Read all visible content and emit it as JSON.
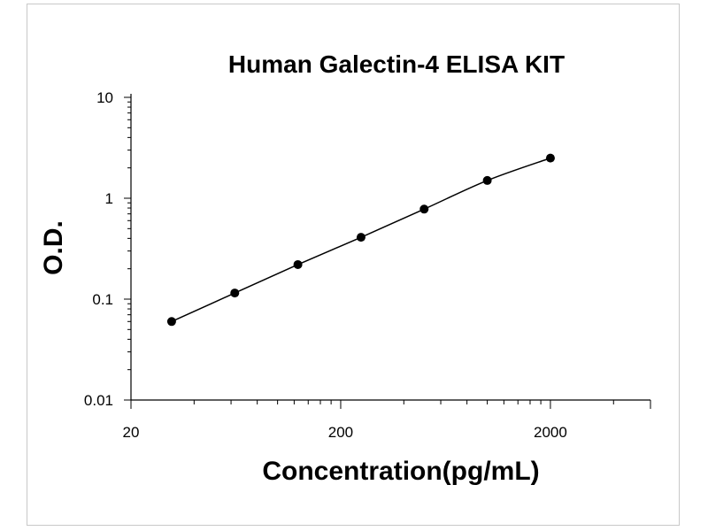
{
  "chart_data": {
    "type": "scatter",
    "title": "Human Galectin-4 ELISA KIT",
    "xlabel": "Concentration(pg/mL)",
    "ylabel": "O.D.",
    "xscale": "log",
    "yscale": "log",
    "xlim": [
      20,
      6000
    ],
    "ylim": [
      0.01,
      10
    ],
    "x_ticks": [
      20,
      200,
      2000
    ],
    "x_tick_labels": [
      "20",
      "200",
      "2000"
    ],
    "y_ticks": [
      0.01,
      0.1,
      1,
      10
    ],
    "y_tick_labels": [
      "0.01",
      "0.1",
      "1",
      "10"
    ],
    "grid": false,
    "series": [
      {
        "x": [
          31.25,
          62.5,
          125,
          250,
          500,
          1000,
          2000
        ],
        "y": [
          0.06,
          0.115,
          0.22,
          0.41,
          0.78,
          1.5,
          2.5
        ],
        "marker": "circle",
        "fit_line": true,
        "color": "#000000"
      }
    ]
  }
}
